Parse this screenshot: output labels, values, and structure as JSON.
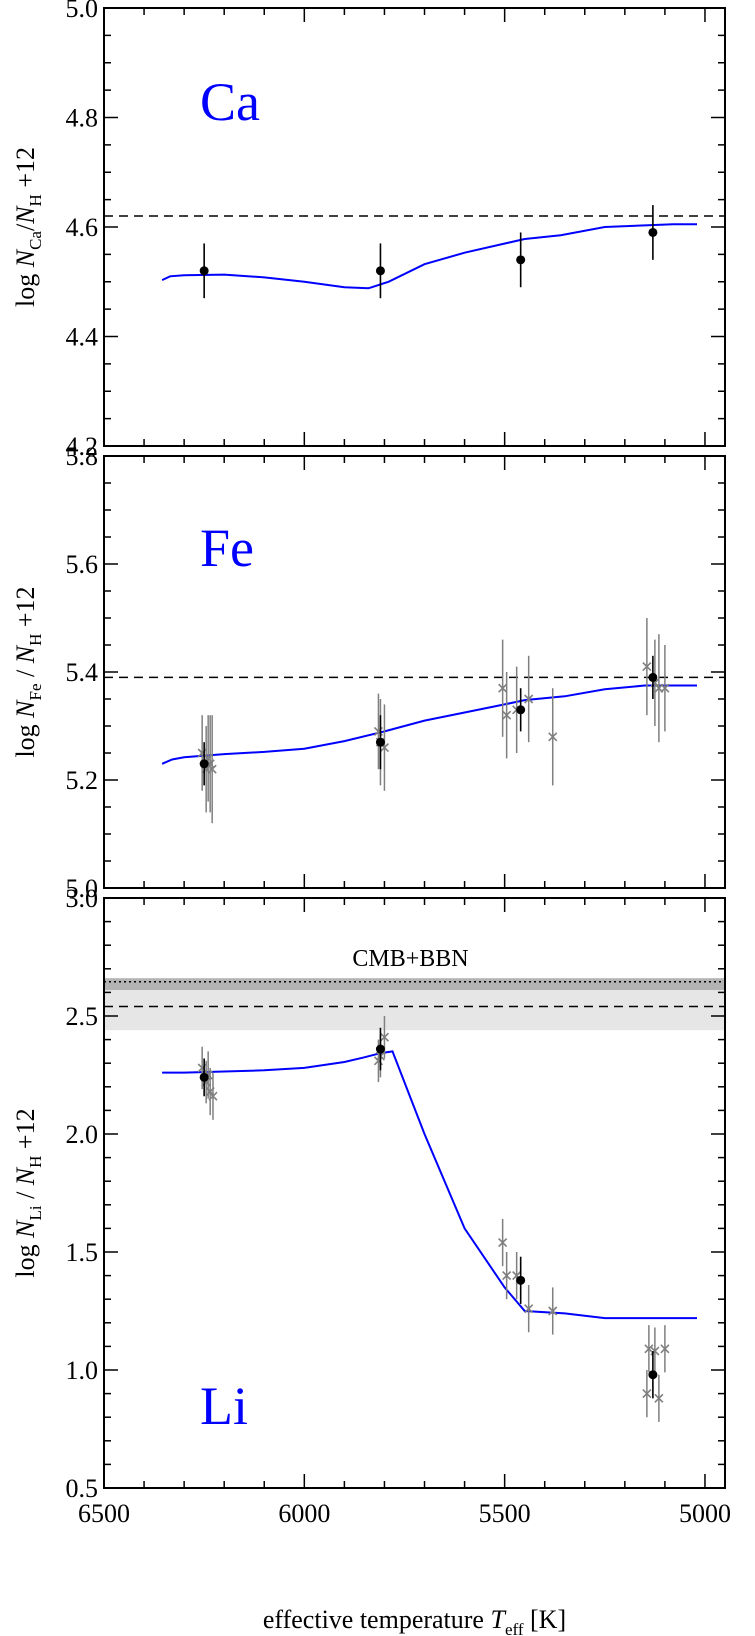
{
  "chart_data": [
    {
      "type": "scatter",
      "element_label": "Ca",
      "ylabel": {
        "prefix": "log ",
        "N": "N",
        "sub": "Ca",
        "mid": "/",
        "N2": "N",
        "sub2": "H",
        "suffix": " +12"
      },
      "xlim": [
        6500,
        4950
      ],
      "ylim": [
        4.2,
        5.0
      ],
      "yticks": [
        4.2,
        4.4,
        4.6,
        4.8,
        5.0
      ],
      "ytick_labels": [
        "4.2",
        "4.4",
        "4.6",
        "4.8",
        "5.0"
      ],
      "yminor": 0.05,
      "reference_line": 4.62,
      "model": {
        "x": [
          6355,
          6335,
          6300,
          6200,
          6100,
          6000,
          5900,
          5840,
          5790,
          5700,
          5600,
          5450,
          5360,
          5250,
          5150,
          5080,
          5020
        ],
        "y": [
          4.503,
          4.51,
          4.512,
          4.513,
          4.508,
          4.5,
          4.49,
          4.488,
          4.5,
          4.532,
          4.553,
          4.578,
          4.585,
          4.6,
          4.603,
          4.605,
          4.605
        ]
      },
      "stars": {
        "x": [
          6250,
          5810,
          5460,
          5130
        ],
        "y": [
          4.52,
          4.52,
          4.54,
          4.59
        ],
        "err": [
          0.05,
          0.05,
          0.05,
          0.05
        ]
      },
      "lines": {
        "x": [],
        "y": [],
        "err": []
      }
    },
    {
      "type": "scatter",
      "element_label": "Fe",
      "ylabel": {
        "prefix": "log ",
        "N": "N",
        "sub": "Fe",
        "mid": " / ",
        "N2": "N",
        "sub2": "H",
        "suffix": " +12"
      },
      "xlim": [
        6500,
        4950
      ],
      "ylim": [
        5.0,
        5.8
      ],
      "yticks": [
        5.0,
        5.2,
        5.4,
        5.6,
        5.8
      ],
      "ytick_labels": [
        "5.0",
        "5.2",
        "5.4",
        "5.6",
        "5.8"
      ],
      "yminor": 0.05,
      "reference_line": 5.39,
      "model": {
        "x": [
          6355,
          6330,
          6300,
          6200,
          6100,
          6000,
          5900,
          5800,
          5700,
          5600,
          5500,
          5450,
          5350,
          5250,
          5150,
          5080,
          5020
        ],
        "y": [
          5.23,
          5.238,
          5.242,
          5.248,
          5.252,
          5.258,
          5.272,
          5.29,
          5.31,
          5.325,
          5.34,
          5.348,
          5.355,
          5.368,
          5.375,
          5.375,
          5.375
        ]
      },
      "stars": {
        "x": [
          6250,
          5810,
          5460,
          5130
        ],
        "y": [
          5.23,
          5.27,
          5.33,
          5.39
        ],
        "err": [
          0.04,
          0.05,
          0.04,
          0.04
        ]
      },
      "lines": {
        "x": [
          6255,
          6245,
          6240,
          6235,
          6230,
          5815,
          5810,
          5800,
          5505,
          5495,
          5470,
          5440,
          5380,
          5145,
          5125,
          5115,
          5100
        ],
        "y": [
          5.25,
          5.22,
          5.24,
          5.23,
          5.22,
          5.29,
          5.27,
          5.26,
          5.37,
          5.32,
          5.33,
          5.35,
          5.28,
          5.41,
          5.38,
          5.37,
          5.37
        ],
        "err": [
          0.07,
          0.08,
          0.08,
          0.09,
          0.1,
          0.07,
          0.08,
          0.08,
          0.09,
          0.08,
          0.08,
          0.08,
          0.09,
          0.09,
          0.08,
          0.1,
          0.08
        ]
      }
    },
    {
      "type": "scatter",
      "element_label": "Li",
      "ylabel": {
        "prefix": "log ",
        "N": "N",
        "sub": "Li",
        "mid": " / ",
        "N2": "N",
        "sub2": "H",
        "suffix": " +12"
      },
      "xlabel": {
        "text": "effective temperature ",
        "T": "T",
        "sub": "eff",
        "unit": "  [K]"
      },
      "xticks": [
        6500,
        6000,
        5500,
        5000
      ],
      "xtick_labels": [
        "6500",
        "6000",
        "5500",
        "5000"
      ],
      "xminor": 100,
      "xlim": [
        6500,
        4950
      ],
      "ylim": [
        0.5,
        3.0
      ],
      "yticks": [
        0.5,
        1.0,
        1.5,
        2.0,
        2.5,
        3.0
      ],
      "ytick_labels": [
        "0.5",
        "1.0",
        "1.5",
        "2.0",
        "2.5",
        "3.0"
      ],
      "yminor": 0.1,
      "band": {
        "label": "CMB+BBN",
        "outer": [
          2.44,
          2.66
        ],
        "inner": [
          2.61,
          2.66
        ],
        "dotted": 2.645,
        "dashed": 2.54,
        "outer_color": "#e6e6e6",
        "inner_color": "#b3b3b3"
      },
      "model": {
        "x": [
          6355,
          6300,
          6200,
          6100,
          6000,
          5900,
          5850,
          5820,
          5800,
          5780,
          5700,
          5600,
          5500,
          5450,
          5350,
          5250,
          5150,
          5080,
          5020
        ],
        "y": [
          2.26,
          2.26,
          2.265,
          2.27,
          2.28,
          2.305,
          2.325,
          2.338,
          2.345,
          2.35,
          2.0,
          1.6,
          1.35,
          1.25,
          1.24,
          1.22,
          1.22,
          1.22,
          1.22
        ]
      },
      "stars": {
        "x": [
          6250,
          5810,
          5460,
          5130
        ],
        "y": [
          2.24,
          2.36,
          1.38,
          0.98
        ],
        "err": [
          0.08,
          0.09,
          0.1,
          0.1
        ]
      },
      "lines": {
        "x": [
          6255,
          6245,
          6240,
          6235,
          6228,
          5815,
          5810,
          5800,
          5505,
          5495,
          5470,
          5440,
          5380,
          5145,
          5140,
          5125,
          5115,
          5100
        ],
        "y": [
          2.28,
          2.22,
          2.25,
          2.18,
          2.16,
          2.31,
          2.33,
          2.41,
          1.54,
          1.4,
          1.4,
          1.26,
          1.25,
          0.9,
          1.09,
          1.08,
          0.88,
          1.09
        ],
        "err": [
          0.09,
          0.09,
          0.1,
          0.1,
          0.1,
          0.09,
          0.09,
          0.09,
          0.1,
          0.1,
          0.1,
          0.1,
          0.1,
          0.1,
          0.1,
          0.1,
          0.1,
          0.1
        ]
      }
    }
  ],
  "colors": {
    "model": "#0000ff",
    "element_label": "#0000ff",
    "stars": "#000000",
    "lines": "#7f7f7f",
    "reference": "#000000"
  }
}
